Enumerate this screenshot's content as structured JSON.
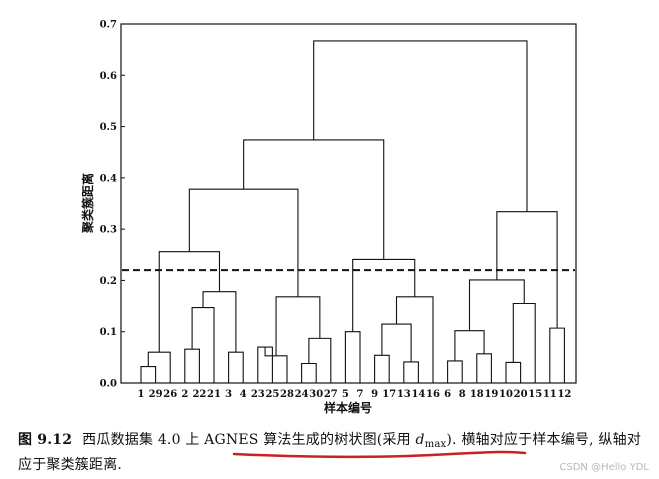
{
  "caption": {
    "figure_number": "图 9.12",
    "pre": "西瓜数据集 4.0 上 AGNES 算法生成的树状图(采用 ",
    "math": "d",
    "math_sub": "max",
    "post": "). 横轴对应于样本编号, 纵轴对应于聚类簇距离."
  },
  "watermark": "CSDN @Hello  YDL",
  "colors": {
    "ink": "#111111",
    "underline": "#cc1f1f"
  },
  "chart_data": {
    "type": "dendrogram",
    "xlabel": "样本编号",
    "ylabel": "聚类簇距离",
    "ylim": [
      0,
      0.7
    ],
    "yticks": [
      0.0,
      0.1,
      0.2,
      0.3,
      0.4,
      0.5,
      0.6,
      0.7
    ],
    "leaf_order": [
      "1",
      "29",
      "26",
      "2",
      "22",
      "21",
      "3",
      "4",
      "23",
      "25",
      "28",
      "24",
      "30",
      "27",
      "5",
      "7",
      "9",
      "17",
      "13",
      "14",
      "16",
      "6",
      "8",
      "18",
      "19",
      "10",
      "20",
      "15",
      "11",
      "12"
    ],
    "cut_threshold": 0.22,
    "merges": [
      {
        "left": "1",
        "right": "29",
        "height": 0.032
      },
      {
        "left": "2",
        "right": "22",
        "height": 0.066
      },
      {
        "left": "3",
        "right": "4",
        "height": 0.06
      },
      {
        "left": "23",
        "right": "25",
        "height": 0.07
      },
      {
        "left": "24",
        "right": "30",
        "height": 0.038
      },
      {
        "left": "5",
        "right": "7",
        "height": 0.1
      },
      {
        "left": "9",
        "right": "17",
        "height": 0.054
      },
      {
        "left": "13",
        "right": "14",
        "height": 0.041
      },
      {
        "left": "6",
        "right": "8",
        "height": 0.043
      },
      {
        "left": "18",
        "right": "19",
        "height": 0.057
      },
      {
        "left": "10",
        "right": "20",
        "height": 0.04
      },
      {
        "left": "11",
        "right": "12",
        "height": 0.107
      },
      {
        "left": 0,
        "right": "26",
        "height": 0.06
      },
      {
        "left": 1,
        "right": "21",
        "height": 0.147
      },
      {
        "left": 3,
        "right": "28",
        "height": 0.053
      },
      {
        "left": 4,
        "right": "27",
        "height": 0.087
      },
      {
        "left": 6,
        "right": 7,
        "height": 0.115
      },
      {
        "left": 8,
        "right": 9,
        "height": 0.102
      },
      {
        "left": 10,
        "right": "15",
        "height": 0.155
      },
      {
        "left": 16,
        "right": "16",
        "height": 0.168
      },
      {
        "left": 13,
        "right": 2,
        "height": 0.178
      },
      {
        "left": 14,
        "right": 15,
        "height": 0.168
      },
      {
        "left": 12,
        "right": 20,
        "height": 0.256
      },
      {
        "left": 5,
        "right": 19,
        "height": 0.241
      },
      {
        "left": 17,
        "right": 18,
        "height": 0.201
      },
      {
        "left": 24,
        "right": 11,
        "height": 0.334
      },
      {
        "left": 22,
        "right": 21,
        "height": 0.378
      },
      {
        "left": 26,
        "right": 23,
        "height": 0.474
      },
      {
        "left": 27,
        "right": 25,
        "height": 0.667
      }
    ]
  }
}
